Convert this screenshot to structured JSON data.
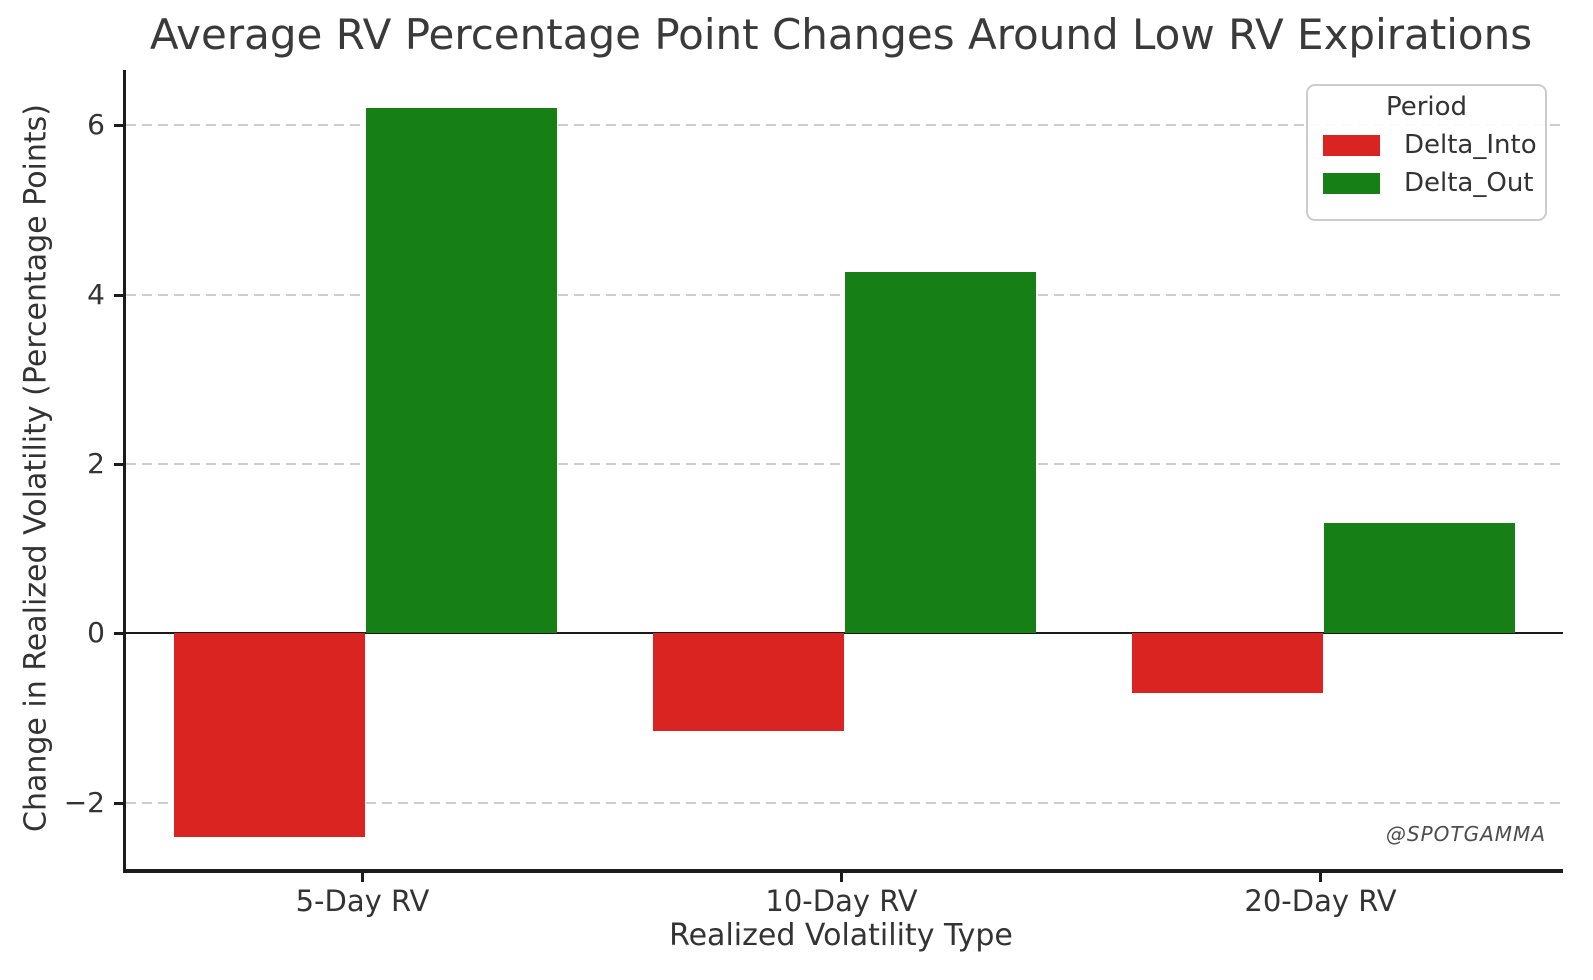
{
  "chart_data": {
    "type": "bar",
    "title": "Average RV Percentage Point Changes Around Low RV Expirations",
    "xlabel": "Realized Volatility Type",
    "ylabel": "Change in Realized Volatility (Percentage Points)",
    "categories": [
      "5-Day RV",
      "10-Day RV",
      "20-Day RV"
    ],
    "series": [
      {
        "name": "Delta_Into",
        "color": "#d92422",
        "values": [
          -2.4,
          -1.15,
          -0.7
        ]
      },
      {
        "name": "Delta_Out",
        "color": "#168016",
        "values": [
          6.2,
          4.27,
          1.3
        ]
      }
    ],
    "ylim": [
      -2.78,
      6.65
    ],
    "yticks": [
      6,
      4,
      2,
      0,
      -2
    ],
    "ytick_labels": [
      "6",
      "4",
      "2",
      "0",
      "−2"
    ],
    "grid": "horizontal dashed",
    "zero_line": true,
    "bar_group_width_fraction": 0.8,
    "legend": {
      "title": "Period",
      "position": "upper right"
    }
  },
  "watermark": "@SPOTGAMMA",
  "colors": {
    "delta_into": "#d92422",
    "delta_out": "#168016",
    "grid": "#cdcdcd",
    "spine": "#1c1c1c",
    "text": "#333333"
  }
}
